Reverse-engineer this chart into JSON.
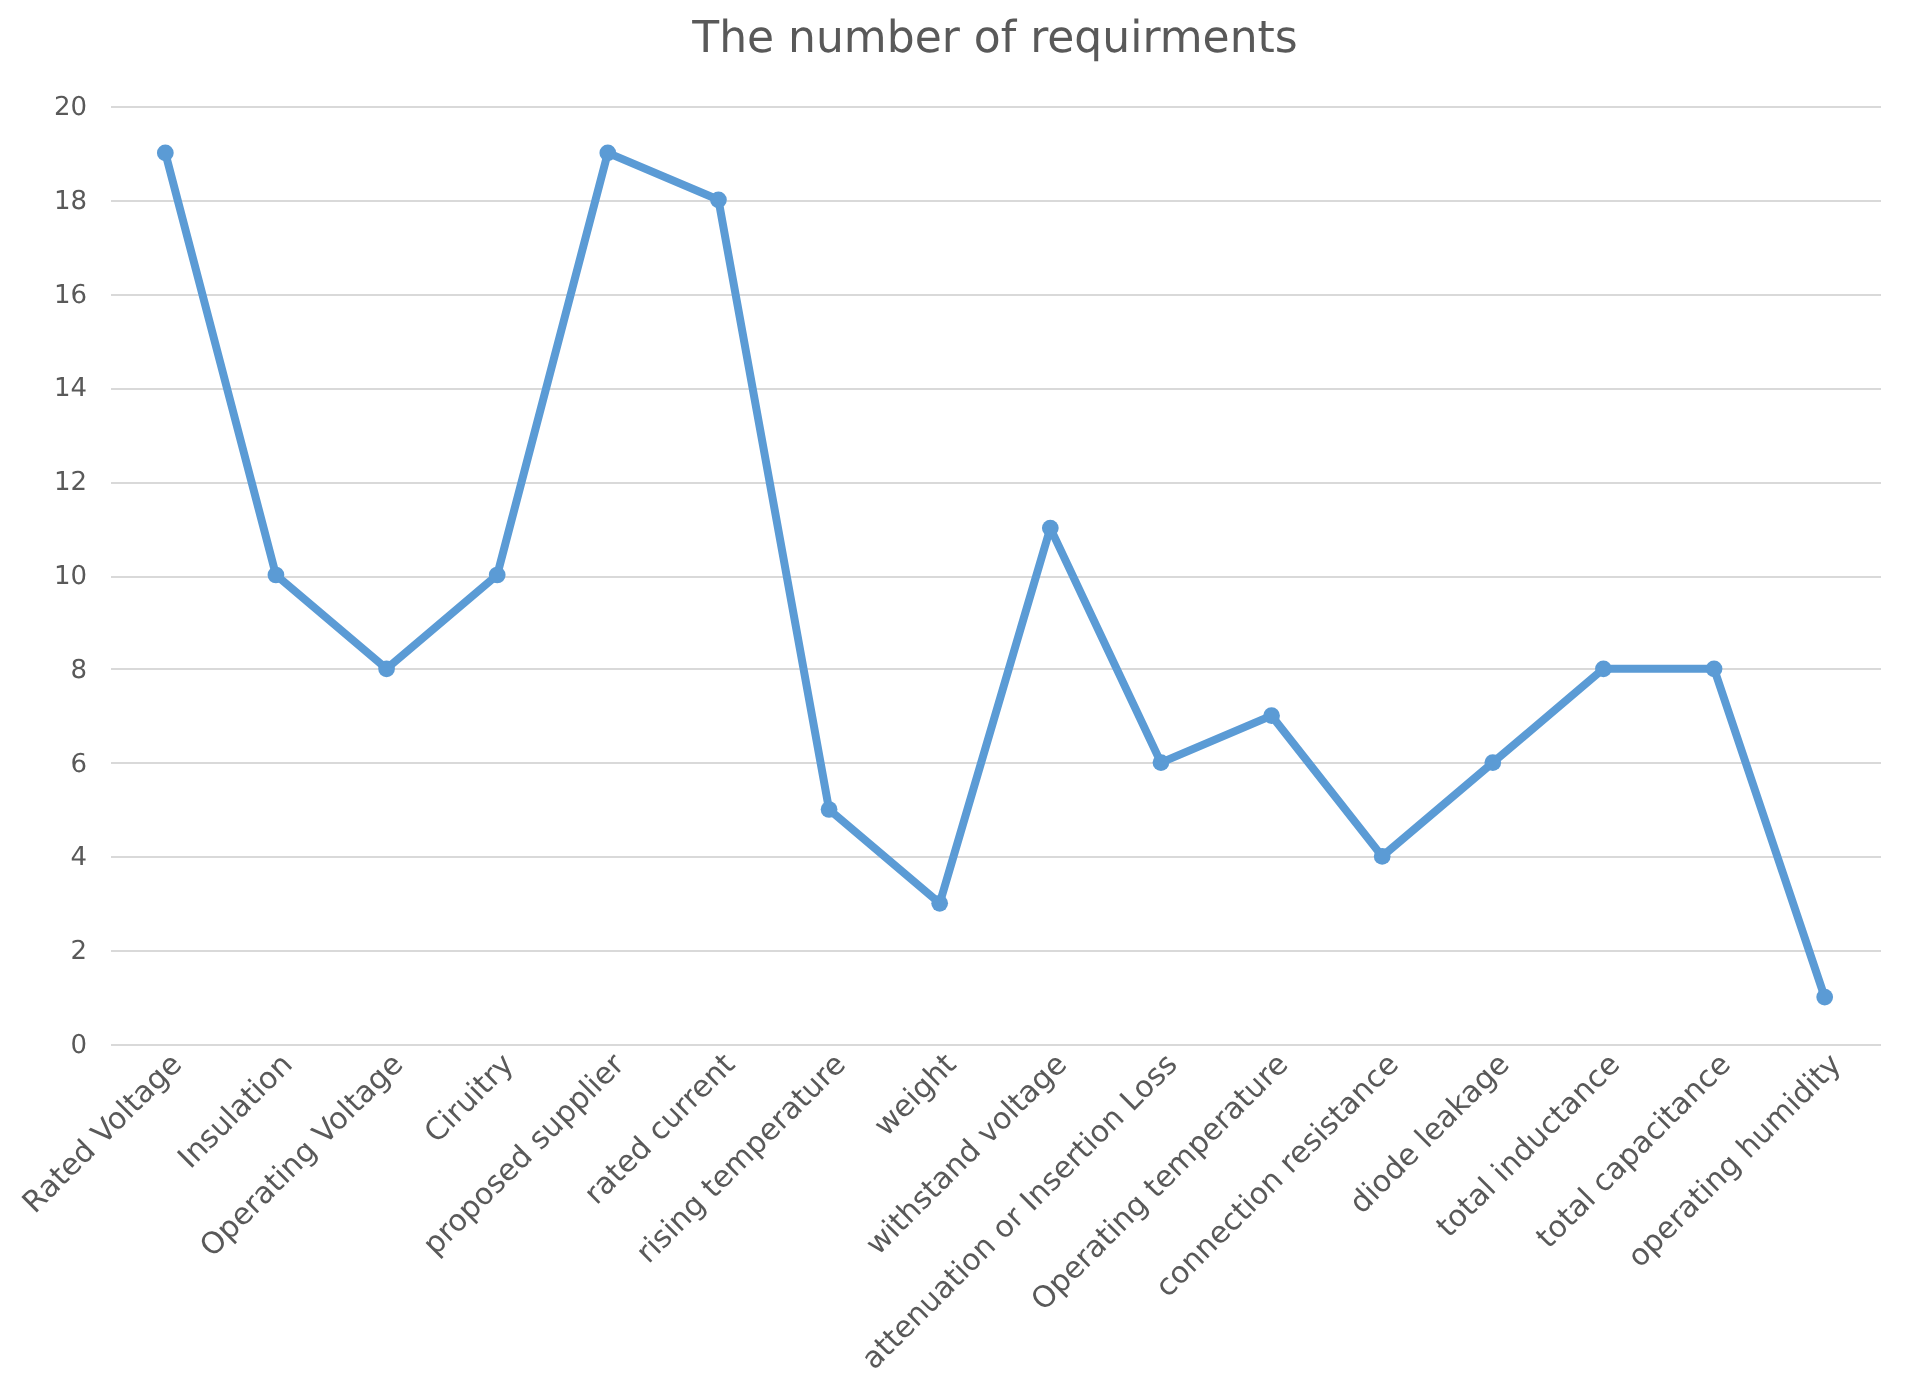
{
  "chart_data": {
    "type": "line",
    "title": "The number of requirments",
    "categories": [
      "Rated Voltage",
      "Insulation",
      "Operating Voltage",
      "Ciruitry",
      "proposed supplier",
      "rated current",
      "rising temperature",
      "weight",
      "withstand voltage",
      "attenuation or Insertion Loss",
      "Operating temperature",
      "connection resistance",
      "diode leakage",
      "total inductance",
      "total capacitance",
      "operating humidity"
    ],
    "series": [
      {
        "color": "#5b9bd5",
        "values": [
          19,
          10,
          8,
          10,
          19,
          18,
          5,
          3,
          11,
          6,
          7,
          4,
          6,
          8,
          8,
          1
        ]
      }
    ],
    "ylim": [
      0,
      20
    ],
    "yticks": [
      0,
      2,
      4,
      6,
      8,
      10,
      12,
      14,
      16,
      18,
      20
    ],
    "grid": "y",
    "marker": "circle",
    "line_style": "solid"
  }
}
